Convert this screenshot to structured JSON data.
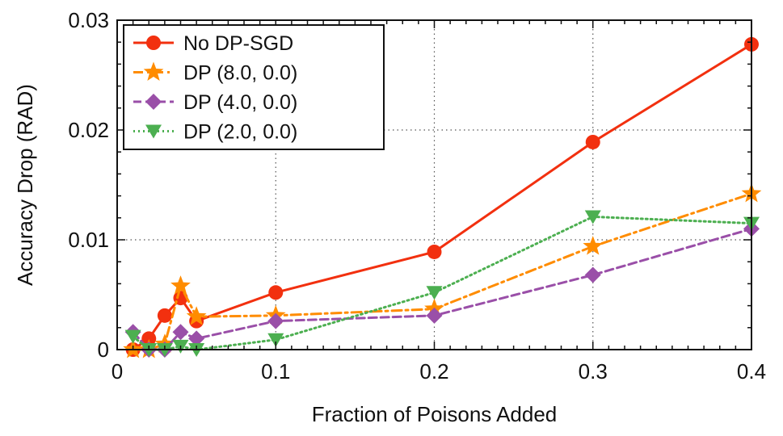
{
  "chart_data": {
    "type": "line",
    "title": "",
    "xlabel": "Fraction of Poisons Added",
    "ylabel": "Accuracy Drop (RAD)",
    "xlim": [
      0,
      0.4
    ],
    "ylim": [
      0,
      0.03
    ],
    "xticks": [
      0,
      0.1,
      0.2,
      0.3,
      0.4
    ],
    "xtick_labels": [
      "0",
      "0.1",
      "0.2",
      "0.3",
      "0.4"
    ],
    "yticks": [
      0,
      0.01,
      0.02,
      0.03
    ],
    "ytick_labels": [
      "0",
      "0.01",
      "0.02",
      "0.03"
    ],
    "grid": "dotted, at major ticks",
    "legend_position": "top-left",
    "series": [
      {
        "name": "No DP-SGD",
        "color": "#f2300f",
        "marker": "circle",
        "line_style": "solid",
        "x": [
          0.01,
          0.02,
          0.03,
          0.04,
          0.05,
          0.1,
          0.2,
          0.3,
          0.4
        ],
        "y": [
          0.0,
          0.001,
          0.0031,
          0.0047,
          0.0026,
          0.0052,
          0.0089,
          0.0189,
          0.0278
        ]
      },
      {
        "name": "DP (8.0, 0.0)",
        "color": "#ff8c00",
        "marker": "star",
        "line_style": "dashdot",
        "x": [
          0.01,
          0.02,
          0.03,
          0.04,
          0.05,
          0.1,
          0.2,
          0.3,
          0.4
        ],
        "y": [
          0.0,
          0.0,
          0.0005,
          0.0058,
          0.003,
          0.0031,
          0.0037,
          0.0094,
          0.0142
        ]
      },
      {
        "name": "DP (4.0, 0.0)",
        "color": "#9a4fa8",
        "marker": "diamond",
        "line_style": "dashed",
        "x": [
          0.01,
          0.02,
          0.03,
          0.04,
          0.05,
          0.1,
          0.2,
          0.3,
          0.4
        ],
        "y": [
          0.0016,
          0.0,
          0.0,
          0.0016,
          0.001,
          0.0026,
          0.0031,
          0.0068,
          0.011
        ]
      },
      {
        "name": "DP (2.0, 0.0)",
        "color": "#4caf50",
        "marker": "triangle-down",
        "line_style": "dotted",
        "x": [
          0.01,
          0.02,
          0.03,
          0.04,
          0.05,
          0.1,
          0.2,
          0.3,
          0.4
        ],
        "y": [
          0.0012,
          0.0,
          0.0,
          0.0003,
          0.0,
          0.0009,
          0.0052,
          0.0121,
          0.0115
        ]
      }
    ]
  }
}
